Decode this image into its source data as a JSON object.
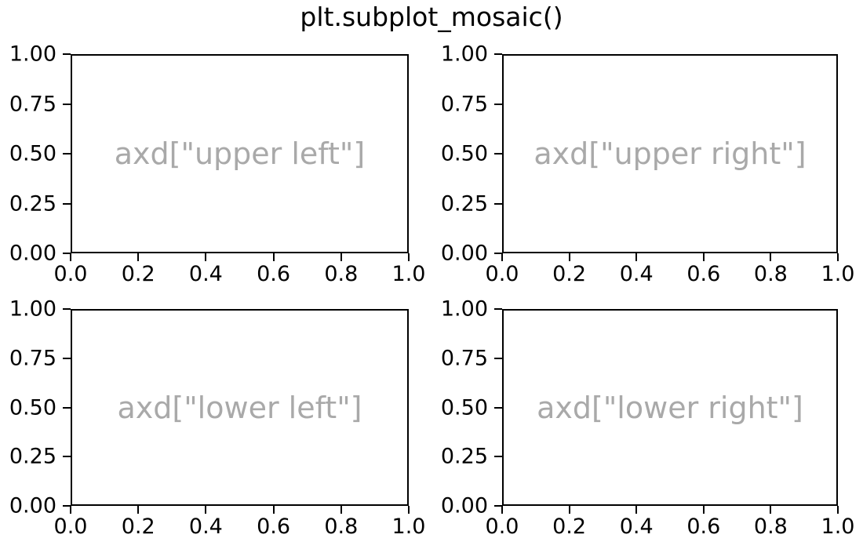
{
  "figure": {
    "title": "plt.subplot_mosaic()",
    "background_color": "#ffffff",
    "text_color": "#000000",
    "spine_color": "#000000",
    "annotation_color": "#a9a9a9"
  },
  "chart_data": [
    {
      "type": "empty-axes",
      "mosaic_key": "upper left",
      "annotation": "axd[\"upper left\"]",
      "xlim": [
        0.0,
        1.0
      ],
      "ylim": [
        0.0,
        1.0
      ],
      "x_tick_labels": [
        "0.0",
        "0.2",
        "0.4",
        "0.6",
        "0.8",
        "1.0"
      ],
      "y_tick_labels": [
        "0.00",
        "0.25",
        "0.50",
        "0.75",
        "1.00"
      ],
      "grid": false
    },
    {
      "type": "empty-axes",
      "mosaic_key": "upper right",
      "annotation": "axd[\"upper right\"]",
      "xlim": [
        0.0,
        1.0
      ],
      "ylim": [
        0.0,
        1.0
      ],
      "x_tick_labels": [
        "0.0",
        "0.2",
        "0.4",
        "0.6",
        "0.8",
        "1.0"
      ],
      "y_tick_labels": [
        "0.00",
        "0.25",
        "0.50",
        "0.75",
        "1.00"
      ],
      "grid": false
    },
    {
      "type": "empty-axes",
      "mosaic_key": "lower left",
      "annotation": "axd[\"lower left\"]",
      "xlim": [
        0.0,
        1.0
      ],
      "ylim": [
        0.0,
        1.0
      ],
      "x_tick_labels": [
        "0.0",
        "0.2",
        "0.4",
        "0.6",
        "0.8",
        "1.0"
      ],
      "y_tick_labels": [
        "0.00",
        "0.25",
        "0.50",
        "0.75",
        "1.00"
      ],
      "grid": false
    },
    {
      "type": "empty-axes",
      "mosaic_key": "lower right",
      "annotation": "axd[\"lower right\"]",
      "xlim": [
        0.0,
        1.0
      ],
      "ylim": [
        0.0,
        1.0
      ],
      "x_tick_labels": [
        "0.0",
        "0.2",
        "0.4",
        "0.6",
        "0.8",
        "1.0"
      ],
      "y_tick_labels": [
        "0.00",
        "0.25",
        "0.50",
        "0.75",
        "1.00"
      ],
      "grid": false
    }
  ]
}
